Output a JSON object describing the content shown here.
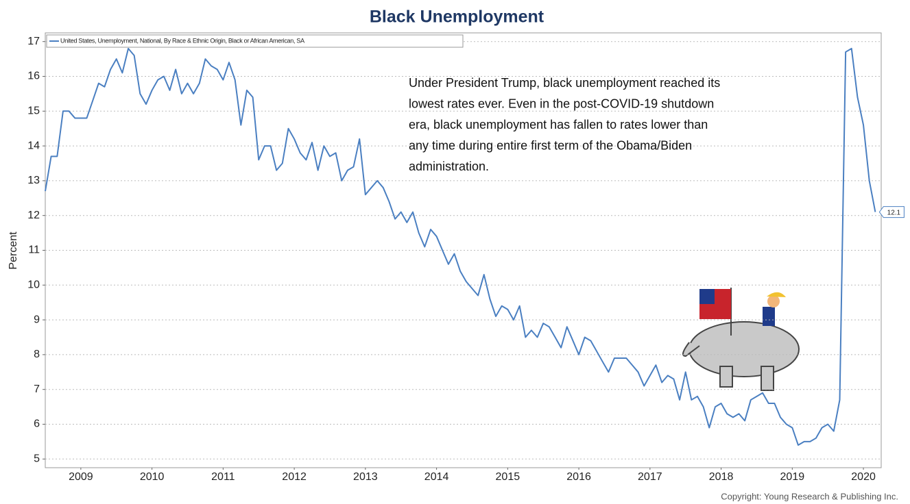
{
  "chart_data": {
    "type": "line",
    "title": "Black Unemployment",
    "y_label": "Percent",
    "annotation": [
      "Under President Trump, black unemployment reached its",
      "lowest rates ever. Even in the post-COVID-19 shutdown",
      "era, black unemployment has fallen to rates lower than",
      "any time during entire first term of the Obama/Biden",
      "administration."
    ],
    "copyright": "Copyright: Young Research & Publishing Inc.",
    "legend": "top-left",
    "grid": true,
    "xlim": [
      2009,
      2020.75
    ],
    "ylim": [
      4.75,
      17.25
    ],
    "yticks": [
      5,
      6,
      7,
      8,
      9,
      10,
      11,
      12,
      13,
      14,
      15,
      16,
      17
    ],
    "xticks": [
      {
        "value": 2009.5,
        "label": "2009"
      },
      {
        "value": 2010.5,
        "label": "2010"
      },
      {
        "value": 2011.5,
        "label": "2011"
      },
      {
        "value": 2012.5,
        "label": "2012"
      },
      {
        "value": 2013.5,
        "label": "2013"
      },
      {
        "value": 2014.5,
        "label": "2014"
      },
      {
        "value": 2015.5,
        "label": "2015"
      },
      {
        "value": 2016.5,
        "label": "2016"
      },
      {
        "value": 2017.5,
        "label": "2017"
      },
      {
        "value": 2018.5,
        "label": "2018"
      },
      {
        "value": 2019.5,
        "label": "2019"
      },
      {
        "value": 2020.5,
        "label": "2020"
      }
    ],
    "x": [
      2009,
      2009.083,
      2009.167,
      2009.25,
      2009.333,
      2009.417,
      2009.5,
      2009.583,
      2009.667,
      2009.75,
      2009.833,
      2009.917,
      2010,
      2010.083,
      2010.167,
      2010.25,
      2010.333,
      2010.417,
      2010.5,
      2010.583,
      2010.667,
      2010.75,
      2010.833,
      2010.917,
      2011,
      2011.083,
      2011.167,
      2011.25,
      2011.333,
      2011.417,
      2011.5,
      2011.583,
      2011.667,
      2011.75,
      2011.833,
      2011.917,
      2012,
      2012.083,
      2012.167,
      2012.25,
      2012.333,
      2012.417,
      2012.5,
      2012.583,
      2012.667,
      2012.75,
      2012.833,
      2012.917,
      2013,
      2013.083,
      2013.167,
      2013.25,
      2013.333,
      2013.417,
      2013.5,
      2013.583,
      2013.667,
      2013.75,
      2013.833,
      2013.917,
      2014,
      2014.083,
      2014.167,
      2014.25,
      2014.333,
      2014.417,
      2014.5,
      2014.583,
      2014.667,
      2014.75,
      2014.833,
      2014.917,
      2015,
      2015.083,
      2015.167,
      2015.25,
      2015.333,
      2015.417,
      2015.5,
      2015.583,
      2015.667,
      2015.75,
      2015.833,
      2015.917,
      2016,
      2016.083,
      2016.167,
      2016.25,
      2016.333,
      2016.417,
      2016.5,
      2016.583,
      2016.667,
      2016.75,
      2016.833,
      2016.917,
      2017,
      2017.083,
      2017.167,
      2017.25,
      2017.333,
      2017.417,
      2017.5,
      2017.583,
      2017.667,
      2017.75,
      2017.833,
      2017.917,
      2018,
      2018.083,
      2018.167,
      2018.25,
      2018.333,
      2018.417,
      2018.5,
      2018.583,
      2018.667,
      2018.75,
      2018.833,
      2018.917,
      2019,
      2019.083,
      2019.167,
      2019.25,
      2019.333,
      2019.417,
      2019.5,
      2019.583,
      2019.667,
      2019.75,
      2019.833,
      2019.917,
      2020,
      2020.083,
      2020.167,
      2020.25,
      2020.333,
      2020.417,
      2020.5,
      2020.583,
      2020.667
    ],
    "series": [
      {
        "name": "United States, Unemployment, National, By Race & Ethnic Origin, Black or African American, SA",
        "color": "#4a7fc1",
        "values": [
          12.7,
          13.7,
          13.7,
          15.0,
          15.0,
          14.8,
          14.8,
          14.8,
          15.3,
          15.8,
          15.7,
          16.2,
          16.5,
          16.1,
          16.8,
          16.6,
          15.5,
          15.2,
          15.6,
          15.9,
          16.0,
          15.6,
          16.2,
          15.5,
          15.8,
          15.5,
          15.8,
          16.5,
          16.3,
          16.2,
          15.9,
          16.4,
          15.9,
          14.6,
          15.6,
          15.4,
          13.6,
          14.0,
          14.0,
          13.3,
          13.5,
          14.5,
          14.2,
          13.8,
          13.6,
          14.1,
          13.3,
          14.0,
          13.7,
          13.8,
          13.0,
          13.3,
          13.4,
          14.2,
          12.6,
          12.8,
          13.0,
          12.8,
          12.4,
          11.9,
          12.1,
          11.8,
          12.1,
          11.5,
          11.1,
          11.6,
          11.4,
          11.0,
          10.6,
          10.9,
          10.4,
          10.1,
          9.9,
          9.7,
          10.3,
          9.6,
          9.1,
          9.4,
          9.3,
          9.0,
          9.4,
          8.5,
          8.7,
          8.5,
          8.9,
          8.8,
          8.5,
          8.2,
          8.8,
          8.4,
          8.0,
          8.5,
          8.4,
          8.1,
          7.8,
          7.5,
          7.9,
          7.9,
          7.9,
          7.7,
          7.5,
          7.1,
          7.4,
          7.7,
          7.2,
          7.4,
          7.3,
          6.7,
          7.5,
          6.7,
          6.8,
          6.5,
          5.9,
          6.5,
          6.6,
          6.3,
          6.2,
          6.3,
          6.1,
          6.7,
          6.8,
          6.9,
          6.6,
          6.6,
          6.2,
          6.0,
          5.9,
          5.4,
          5.5,
          5.5,
          5.6,
          5.9,
          6.0,
          5.8,
          6.7,
          16.7,
          16.8,
          15.4,
          14.6,
          13.0,
          12.1
        ]
      }
    ]
  }
}
